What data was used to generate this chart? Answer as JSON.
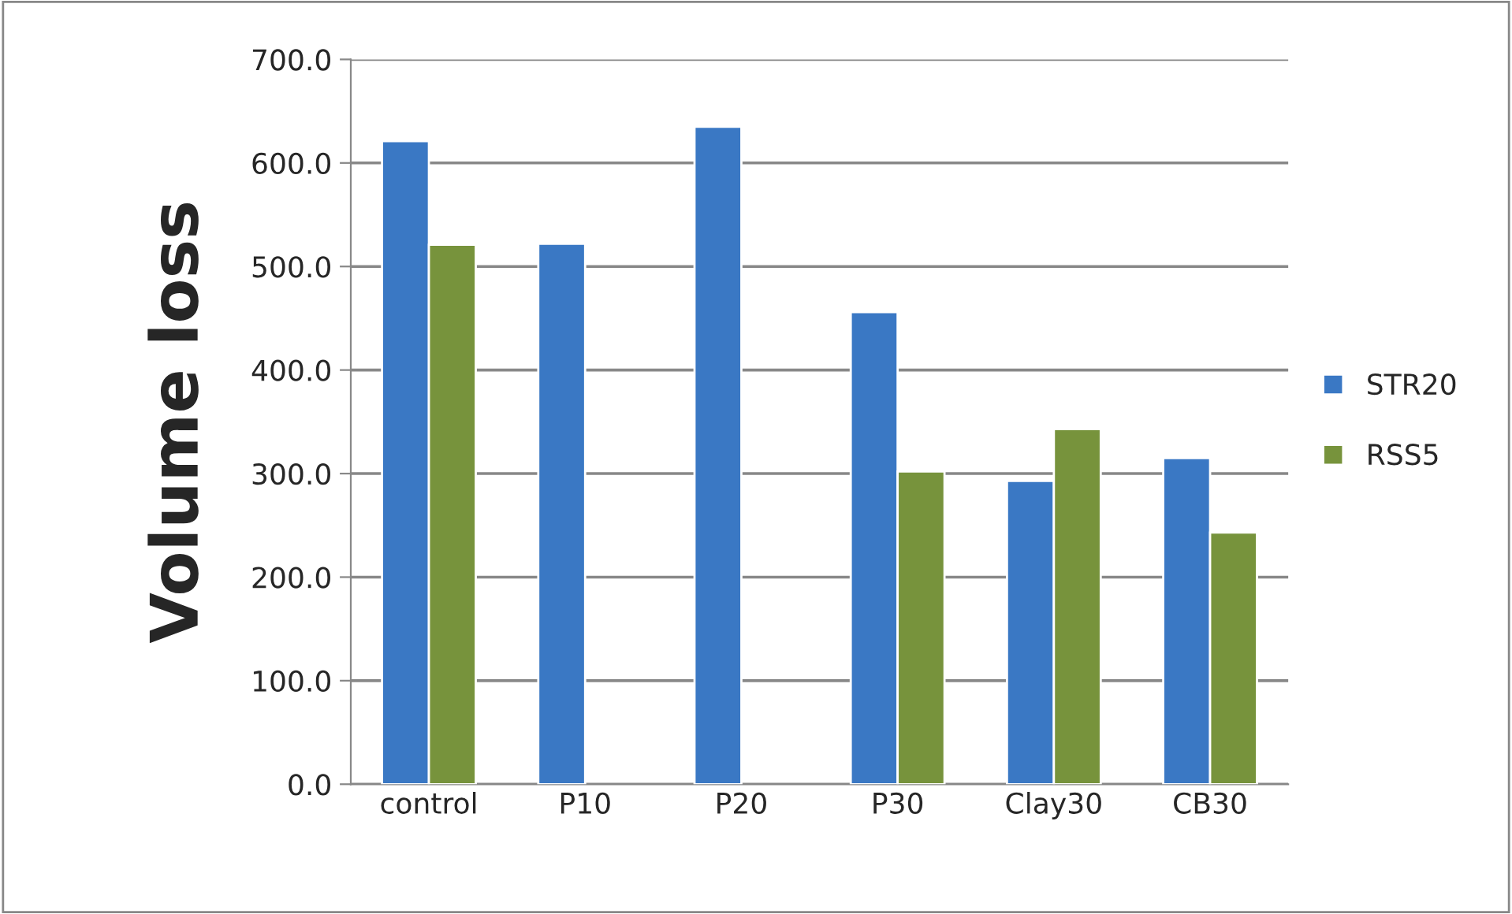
{
  "chart_data": {
    "type": "bar",
    "ylabel": "Volume loss",
    "categories": [
      "control",
      "P10",
      "P20",
      "P30",
      "Clay30",
      "CB30"
    ],
    "series": [
      {
        "name": "STR20",
        "color": "#3a78c4",
        "values": [
          621,
          522,
          635,
          456,
          293,
          315
        ]
      },
      {
        "name": "RSS5",
        "color": "#77933c",
        "values": [
          521,
          null,
          null,
          302,
          343,
          243
        ]
      }
    ],
    "ylim": [
      0,
      700
    ],
    "yticks": [
      {
        "value": 0,
        "label": "0.0"
      },
      {
        "value": 100,
        "label": "100.0"
      },
      {
        "value": 200,
        "label": "200.0"
      },
      {
        "value": 300,
        "label": "300.0"
      },
      {
        "value": 400,
        "label": "400.0"
      },
      {
        "value": 500,
        "label": "500.0"
      },
      {
        "value": 600,
        "label": "600.0"
      },
      {
        "value": 700,
        "label": "700.0"
      }
    ],
    "grid": "y",
    "legend": "right"
  }
}
